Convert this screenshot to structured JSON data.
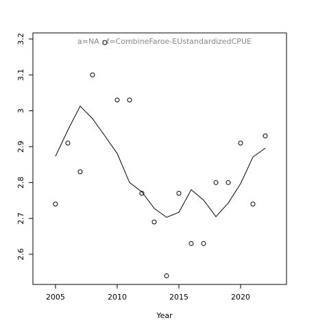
{
  "chart_data": {
    "type": "scatter",
    "title": "a=NA  :  f=CombineFaroe-EUstandardizedCPUE",
    "x_label": "Year",
    "x": [
      2005,
      2006,
      2007,
      2008,
      2009,
      2010,
      2011,
      2012,
      2013,
      2014,
      2015,
      2016,
      2017,
      2018,
      2019,
      2020,
      2021,
      2022
    ],
    "points": [
      2.74,
      2.91,
      2.83,
      3.1,
      3.19,
      3.03,
      3.03,
      2.77,
      2.69,
      2.54,
      2.77,
      2.63,
      2.63,
      2.8,
      2.8,
      2.91,
      2.74,
      2.93
    ],
    "fit": [
      2.873,
      2.946,
      3.013,
      2.978,
      2.93,
      2.881,
      2.8,
      2.774,
      2.728,
      2.703,
      2.717,
      2.78,
      2.751,
      2.705,
      2.743,
      2.797,
      2.871,
      2.896
    ],
    "color": "#000000",
    "xlim": [
      2003.17,
      2023.72
    ],
    "ylim": [
      2.516,
      3.217
    ],
    "xticks": [
      2005,
      2010,
      2015,
      2020
    ],
    "yticks": [
      2.6,
      2.7,
      2.8,
      2.9,
      3.0,
      3.1,
      3.2
    ]
  }
}
